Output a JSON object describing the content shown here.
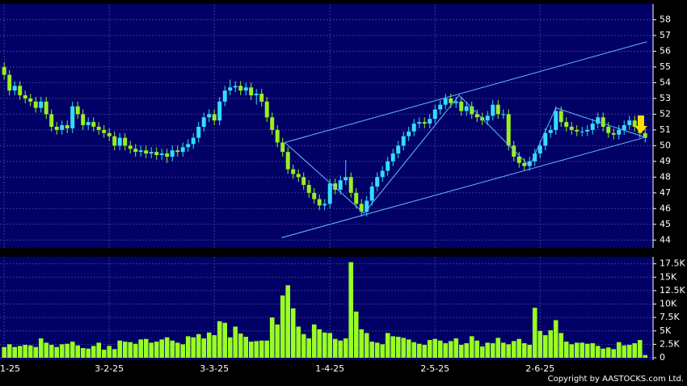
{
  "chart_data": {
    "type": "candlestick",
    "xlim": [
      -0.8,
      123.5
    ],
    "xticks": [
      {
        "value": 0,
        "label": "1-25"
      },
      {
        "value": 20,
        "label": "3-2-25"
      },
      {
        "value": 40,
        "label": "3-3-25"
      },
      {
        "value": 62,
        "label": "1-4-25"
      },
      {
        "value": 82,
        "label": "2-5-25"
      },
      {
        "value": 102,
        "label": "2-6-25"
      }
    ],
    "ylim": [
      43.5,
      59
    ],
    "yticks": [
      44,
      45,
      46,
      47,
      48,
      49,
      50,
      51,
      52,
      53,
      54,
      55,
      56,
      57,
      58
    ],
    "up_color": "#33ddff",
    "down_color": "#99ee22",
    "open": [
      55.0,
      54.5,
      53.5,
      53.8,
      53.2,
      53.0,
      52.8,
      52.4,
      52.8,
      52.0,
      51.2,
      51.0,
      51.3,
      51.1,
      52.5,
      52.0,
      51.3,
      51.5,
      51.2,
      51.0,
      50.8,
      50.6,
      50.0,
      50.5,
      50.0,
      49.8,
      49.6,
      49.7,
      49.5,
      49.6,
      49.4,
      49.5,
      49.3,
      49.7,
      49.6,
      49.9,
      50.1,
      50.5,
      51.2,
      51.8,
      52.0,
      51.6,
      52.8,
      53.5,
      53.7,
      53.8,
      53.5,
      53.7,
      53.2,
      53.3,
      52.8,
      51.8,
      51.0,
      50.2,
      49.6,
      48.5,
      48.2,
      48.0,
      47.5,
      47.0,
      46.6,
      46.2,
      46.3,
      47.6,
      47.2,
      47.8,
      48.0,
      47.0,
      46.3,
      45.8,
      46.5,
      47.4,
      48.0,
      48.4,
      49.0,
      49.5,
      50.0,
      50.6,
      50.9,
      51.4,
      51.5,
      51.4,
      51.7,
      52.3,
      52.6,
      53.0,
      52.7,
      52.8,
      52.2,
      52.5,
      52.0,
      51.8,
      51.6,
      51.9,
      52.6,
      52.0,
      52.0,
      50.0,
      49.3,
      48.9,
      48.7,
      49.0,
      49.5,
      50.0,
      50.8,
      51.0,
      52.2,
      51.5,
      51.2,
      51.0,
      50.9,
      50.9,
      51.0,
      51.4,
      51.8,
      51.2,
      50.8,
      50.7,
      51.0,
      51.3,
      51.6,
      51.2,
      50.8
    ],
    "high": [
      55.3,
      54.8,
      54.1,
      54.1,
      53.5,
      53.3,
      53.1,
      53.1,
      53.1,
      52.3,
      51.5,
      51.6,
      51.6,
      52.8,
      52.8,
      52.3,
      51.8,
      51.8,
      51.5,
      51.3,
      51.1,
      50.9,
      50.8,
      50.8,
      50.3,
      50.1,
      50.0,
      50.0,
      49.9,
      49.9,
      49.8,
      49.8,
      50.0,
      50.0,
      50.2,
      50.4,
      50.8,
      51.5,
      52.1,
      52.3,
      52.3,
      53.1,
      53.8,
      54.2,
      54.1,
      54.1,
      54.0,
      54.0,
      53.6,
      53.6,
      53.1,
      52.1,
      51.3,
      50.5,
      49.9,
      48.8,
      48.5,
      48.3,
      47.8,
      47.3,
      46.9,
      46.6,
      47.9,
      47.9,
      48.1,
      49.1,
      48.3,
      47.3,
      46.6,
      46.8,
      47.7,
      48.3,
      48.7,
      49.3,
      49.8,
      50.3,
      50.9,
      51.2,
      51.7,
      51.8,
      51.8,
      52.0,
      52.6,
      52.9,
      53.3,
      53.3,
      53.1,
      53.1,
      52.8,
      52.8,
      52.3,
      52.1,
      52.2,
      52.9,
      52.9,
      52.3,
      52.3,
      50.3,
      49.6,
      49.2,
      49.3,
      49.8,
      50.3,
      51.1,
      51.3,
      52.5,
      52.5,
      51.8,
      51.5,
      51.3,
      51.2,
      51.3,
      51.7,
      52.1,
      52.1,
      51.5,
      51.1,
      51.3,
      51.6,
      51.9,
      51.9,
      51.5,
      51.1
    ],
    "low": [
      54.2,
      53.2,
      53.2,
      52.9,
      52.7,
      52.5,
      52.1,
      52.1,
      51.7,
      50.9,
      50.7,
      50.7,
      50.8,
      50.8,
      51.7,
      51.0,
      51.0,
      50.9,
      50.7,
      50.5,
      50.3,
      49.7,
      49.7,
      49.7,
      49.5,
      49.3,
      49.3,
      49.2,
      49.2,
      49.1,
      49.1,
      48.9,
      49.0,
      49.3,
      49.3,
      49.6,
      49.8,
      50.2,
      50.9,
      51.5,
      51.3,
      51.3,
      52.5,
      53.2,
      53.4,
      53.2,
      53.2,
      52.9,
      52.6,
      52.5,
      51.5,
      50.7,
      49.9,
      49.3,
      48.2,
      47.9,
      47.7,
      47.2,
      46.7,
      46.3,
      45.9,
      45.9,
      46.0,
      46.9,
      46.9,
      47.5,
      46.7,
      46.0,
      45.5,
      45.5,
      46.2,
      47.1,
      47.7,
      48.1,
      48.7,
      49.2,
      49.7,
      50.3,
      50.6,
      51.1,
      51.1,
      51.1,
      51.4,
      52.0,
      52.3,
      52.4,
      52.4,
      51.9,
      51.9,
      51.7,
      51.5,
      51.3,
      51.3,
      51.6,
      51.7,
      51.7,
      49.7,
      49.0,
      48.6,
      48.4,
      48.4,
      48.7,
      49.2,
      49.7,
      50.5,
      50.7,
      51.2,
      50.9,
      50.7,
      50.6,
      50.6,
      50.6,
      50.7,
      51.1,
      50.9,
      50.5,
      50.4,
      50.4,
      50.7,
      51.0,
      50.9,
      50.5,
      50.2
    ],
    "close": [
      54.5,
      53.5,
      53.8,
      53.2,
      53.0,
      52.8,
      52.4,
      52.8,
      52.0,
      51.2,
      51.0,
      51.3,
      51.1,
      52.5,
      52.0,
      51.3,
      51.5,
      51.2,
      51.0,
      50.8,
      50.6,
      50.0,
      50.5,
      50.0,
      49.8,
      49.6,
      49.7,
      49.5,
      49.6,
      49.4,
      49.5,
      49.3,
      49.7,
      49.6,
      49.9,
      50.1,
      50.5,
      51.2,
      51.8,
      52.0,
      51.6,
      52.8,
      53.5,
      53.7,
      53.8,
      53.5,
      53.7,
      53.2,
      53.3,
      52.8,
      51.8,
      51.0,
      50.2,
      49.6,
      48.5,
      48.2,
      48.0,
      47.5,
      47.0,
      46.6,
      46.2,
      46.3,
      47.6,
      47.2,
      47.8,
      48.0,
      47.0,
      46.3,
      45.8,
      46.5,
      47.4,
      48.0,
      48.4,
      49.0,
      49.5,
      50.0,
      50.6,
      50.9,
      51.4,
      51.5,
      51.4,
      51.7,
      52.3,
      52.6,
      53.0,
      52.7,
      52.8,
      52.2,
      52.5,
      52.0,
      51.8,
      51.6,
      51.9,
      52.6,
      52.0,
      52.0,
      50.0,
      49.3,
      48.9,
      48.7,
      49.0,
      49.5,
      50.0,
      50.8,
      51.0,
      52.2,
      51.5,
      51.2,
      51.0,
      50.9,
      50.9,
      51.0,
      51.4,
      51.8,
      51.2,
      50.8,
      50.7,
      51.0,
      51.3,
      51.6,
      51.2,
      50.8,
      50.5
    ],
    "line_color": "#66bbff",
    "trend_lines": [
      {
        "x": [
          53.4,
          122.3
        ],
        "y": [
          50.2,
          56.6
        ]
      },
      {
        "x": [
          52.8,
          122.3
        ],
        "y": [
          44.15,
          50.56
        ]
      },
      {
        "x": [
          53.4,
          68.5,
          86.6,
          100,
          105,
          122.3
        ],
        "y": [
          50.2,
          45.7,
          53.2,
          48.7,
          52.4,
          50.5
        ]
      }
    ],
    "volume": [
      2000,
      2500,
      2000,
      2200,
      2400,
      2300,
      2000,
      3600,
      2800,
      2400,
      2000,
      2500,
      2600,
      3000,
      2300,
      1800,
      1700,
      2200,
      2800,
      1500,
      2200,
      1600,
      3200,
      3000,
      2900,
      2600,
      3400,
      3500,
      2800,
      3000,
      3400,
      3800,
      3200,
      2800,
      2500,
      4000,
      3800,
      4400,
      3600,
      4700,
      4200,
      6800,
      6500,
      3800,
      5800,
      4500,
      3900,
      3000,
      3100,
      3200,
      3200,
      7500,
      6200,
      11600,
      13500,
      9200,
      5800,
      4400,
      3600,
      6200,
      5300,
      4700,
      4600,
      3500,
      3200,
      3600,
      17800,
      8600,
      5300,
      4600,
      3000,
      2800,
      2500,
      4600,
      4000,
      3900,
      3700,
      3400,
      2900,
      2600,
      2400,
      3300,
      3500,
      3200,
      2700,
      3100,
      3600,
      2400,
      2700,
      4000,
      3200,
      2100,
      2800,
      2700,
      3700,
      2800,
      2500,
      3100,
      3500,
      2700,
      2400,
      9300,
      5000,
      4200,
      5100,
      7000,
      4600,
      3000,
      2500,
      2800,
      2800,
      2600,
      2700,
      2200,
      1700,
      1900,
      1600,
      2900,
      2300,
      2400,
      2700,
      3300,
      500
    ],
    "volume_color": "#99ff22",
    "volume_ylim": [
      0,
      18800
    ],
    "volume_yticks": [
      0,
      {
        "value": 2500,
        "label": "2.5K"
      },
      {
        "value": 5000,
        "label": "5K"
      },
      {
        "value": 7500,
        "label": "7.5K"
      },
      {
        "value": 10000,
        "label": "10K"
      },
      {
        "value": 12500,
        "label": "12.5K"
      },
      {
        "value": 15000,
        "label": "15K"
      },
      {
        "value": 17500,
        "label": "17.5K"
      }
    ],
    "copyright": "Copyright by AASTOCKS.com Ltd."
  }
}
